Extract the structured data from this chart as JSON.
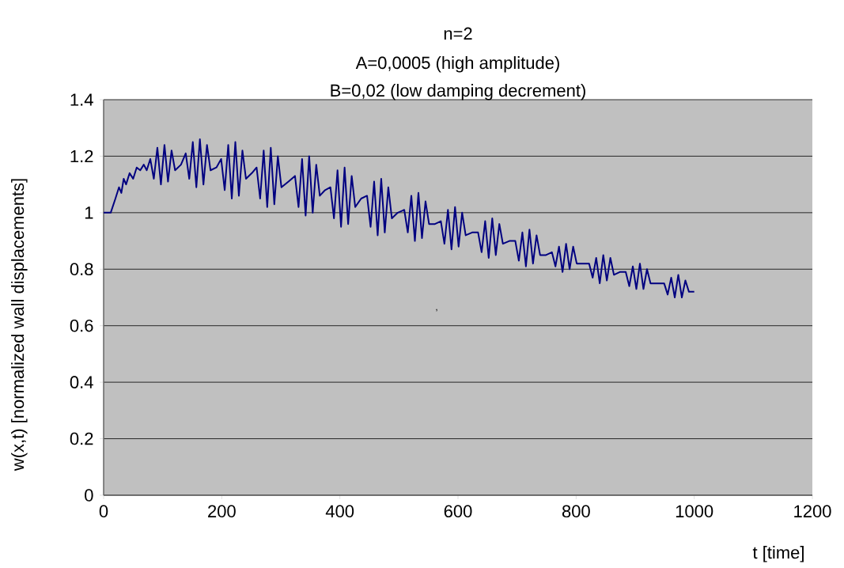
{
  "chart_data": {
    "type": "line",
    "title": "n=2",
    "subtitle": "A=0,0005 (high amplitude)",
    "annotations": [
      "B=0,02 (low damping decrement)",
      ","
    ],
    "xlabel": "t [time]",
    "ylabel": "w(x,t)    [normalized wall displacements]",
    "series": [
      {
        "color": "#000080",
        "x": [
          0,
          12,
          20,
          26,
          30,
          34,
          38,
          44,
          50,
          56,
          62,
          68,
          73,
          79,
          85,
          91,
          97,
          103,
          109,
          115,
          121,
          131,
          139,
          145,
          151,
          157,
          163,
          169,
          175,
          181,
          191,
          199,
          205,
          211,
          217,
          223,
          229,
          235,
          241,
          251,
          259,
          265,
          271,
          277,
          283,
          289,
          295,
          301,
          313,
          324,
          330,
          336,
          342,
          348,
          354,
          360,
          366,
          375,
          384,
          390,
          396,
          402,
          408,
          414,
          420,
          426,
          436,
          446,
          452,
          458,
          464,
          470,
          476,
          482,
          488,
          498,
          509,
          515,
          521,
          527,
          533,
          539,
          545,
          551,
          561,
          571,
          577,
          583,
          589,
          595,
          601,
          607,
          613,
          624,
          634,
          640,
          646,
          652,
          658,
          664,
          670,
          676,
          687,
          697,
          703,
          709,
          715,
          721,
          727,
          733,
          739,
          749,
          759,
          765,
          771,
          777,
          783,
          789,
          795,
          801,
          812,
          822,
          828,
          834,
          840,
          846,
          852,
          858,
          864,
          874,
          884,
          890,
          896,
          902,
          908,
          914,
          920,
          926,
          937,
          949,
          955,
          961,
          967,
          973,
          979,
          985,
          991,
          1000
        ],
        "values": [
          1.0,
          1.0,
          1.05,
          1.09,
          1.07,
          1.12,
          1.1,
          1.14,
          1.12,
          1.16,
          1.15,
          1.17,
          1.15,
          1.19,
          1.12,
          1.23,
          1.1,
          1.24,
          1.11,
          1.22,
          1.15,
          1.17,
          1.21,
          1.12,
          1.25,
          1.09,
          1.26,
          1.1,
          1.24,
          1.15,
          1.16,
          1.19,
          1.08,
          1.24,
          1.05,
          1.25,
          1.06,
          1.22,
          1.12,
          1.14,
          1.16,
          1.05,
          1.22,
          1.02,
          1.23,
          1.03,
          1.2,
          1.09,
          1.11,
          1.13,
          1.02,
          1.19,
          0.99,
          1.2,
          1.0,
          1.17,
          1.06,
          1.08,
          1.09,
          0.98,
          1.15,
          0.95,
          1.16,
          0.96,
          1.13,
          1.02,
          1.05,
          1.06,
          0.95,
          1.11,
          0.92,
          1.12,
          0.93,
          1.09,
          0.98,
          1.0,
          1.01,
          0.93,
          1.06,
          0.9,
          1.07,
          0.91,
          1.04,
          0.96,
          0.96,
          0.97,
          0.89,
          1.01,
          0.87,
          1.02,
          0.88,
          1.0,
          0.92,
          0.93,
          0.93,
          0.86,
          0.97,
          0.84,
          0.98,
          0.85,
          0.96,
          0.89,
          0.9,
          0.9,
          0.83,
          0.93,
          0.81,
          0.94,
          0.82,
          0.92,
          0.85,
          0.85,
          0.86,
          0.81,
          0.88,
          0.79,
          0.89,
          0.8,
          0.88,
          0.82,
          0.82,
          0.82,
          0.77,
          0.84,
          0.75,
          0.85,
          0.76,
          0.84,
          0.78,
          0.79,
          0.79,
          0.74,
          0.81,
          0.73,
          0.82,
          0.73,
          0.8,
          0.75,
          0.75,
          0.75,
          0.71,
          0.77,
          0.7,
          0.78,
          0.7,
          0.76,
          0.72,
          0.72
        ]
      }
    ],
    "xlim": [
      0,
      1200
    ],
    "ylim": [
      0,
      1.4
    ],
    "xticks": [
      0,
      200,
      400,
      600,
      800,
      1000,
      1200
    ],
    "yticks": [
      0,
      0.2,
      0.4,
      0.6,
      0.8,
      1,
      1.2,
      1.4
    ],
    "grid": "y"
  }
}
